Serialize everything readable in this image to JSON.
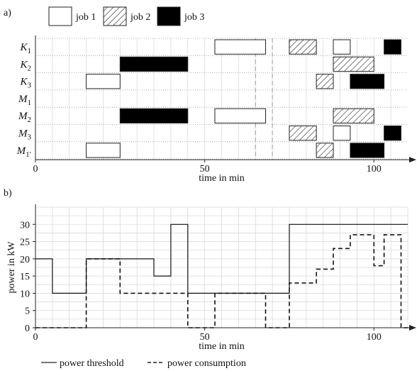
{
  "panel_a": {
    "tag": "a)",
    "legend": [
      "job 1",
      "job 2",
      "job 3"
    ]
  },
  "panel_b": {
    "tag": "b)",
    "legend": [
      "power threshold",
      "power consumption"
    ]
  },
  "chart_data": [
    {
      "type": "gantt",
      "xlabel": "time in min",
      "xlim": [
        0,
        110
      ],
      "xticks": [
        "0",
        "50",
        "100"
      ],
      "xtick_values": [
        0,
        50,
        100
      ],
      "rows": [
        {
          "name": "K",
          "sub": "1",
          "prime": ""
        },
        {
          "name": "K",
          "sub": "2",
          "prime": ""
        },
        {
          "name": "K",
          "sub": "3",
          "prime": ""
        },
        {
          "name": "M",
          "sub": "1",
          "prime": ""
        },
        {
          "name": "M",
          "sub": "2",
          "prime": ""
        },
        {
          "name": "M",
          "sub": "3",
          "prime": ""
        },
        {
          "name": "M",
          "sub": "1",
          "prime": "′"
        }
      ],
      "jobs": [
        "job 1",
        "job 2",
        "job 3"
      ],
      "bars": [
        {
          "row": 0,
          "job": 0,
          "start": 53,
          "end": 68
        },
        {
          "row": 0,
          "job": 1,
          "start": 75,
          "end": 83
        },
        {
          "row": 0,
          "job": 0,
          "start": 88,
          "end": 93
        },
        {
          "row": 0,
          "job": 2,
          "start": 103,
          "end": 108
        },
        {
          "row": 1,
          "job": 2,
          "start": 25,
          "end": 45
        },
        {
          "row": 1,
          "job": 1,
          "start": 88,
          "end": 100
        },
        {
          "row": 2,
          "job": 0,
          "start": 15,
          "end": 25
        },
        {
          "row": 2,
          "job": 1,
          "start": 83,
          "end": 88
        },
        {
          "row": 2,
          "job": 2,
          "start": 93,
          "end": 103
        },
        {
          "row": 4,
          "job": 2,
          "start": 25,
          "end": 45
        },
        {
          "row": 4,
          "job": 0,
          "start": 53,
          "end": 68
        },
        {
          "row": 4,
          "job": 1,
          "start": 88,
          "end": 100
        },
        {
          "row": 5,
          "job": 1,
          "start": 75,
          "end": 83
        },
        {
          "row": 5,
          "job": 0,
          "start": 88,
          "end": 93
        },
        {
          "row": 5,
          "job": 2,
          "start": 103,
          "end": 108
        },
        {
          "row": 6,
          "job": 0,
          "start": 15,
          "end": 25
        },
        {
          "row": 6,
          "job": 1,
          "start": 83,
          "end": 88
        },
        {
          "row": 6,
          "job": 2,
          "start": 93,
          "end": 103
        }
      ],
      "vlines": [
        65,
        70
      ]
    },
    {
      "type": "line",
      "xlabel": "time in min",
      "ylabel": "power in kW",
      "xlim": [
        0,
        110
      ],
      "ylim": [
        0,
        35
      ],
      "xticks": [
        "0",
        "50",
        "100"
      ],
      "xtick_values": [
        0,
        50,
        100
      ],
      "yticks": [
        "0",
        "5",
        "10",
        "15",
        "20",
        "25",
        "30"
      ],
      "ytick_values": [
        0,
        5,
        10,
        15,
        20,
        25,
        30
      ],
      "grid": true,
      "series": [
        {
          "name": "power threshold",
          "style": "solid",
          "x": [
            0,
            5,
            5,
            15,
            15,
            35,
            35,
            40,
            40,
            45,
            45,
            75,
            75,
            110
          ],
          "y": [
            20,
            20,
            10,
            10,
            20,
            20,
            15,
            15,
            30,
            30,
            10,
            10,
            30,
            30
          ]
        },
        {
          "name": "power consumption",
          "style": "dashed",
          "x": [
            0,
            15,
            15,
            25,
            25,
            45,
            45,
            53,
            53,
            68,
            68,
            75,
            75,
            83,
            83,
            88,
            88,
            93,
            93,
            100,
            100,
            103,
            103,
            108,
            108,
            110
          ],
          "y": [
            0,
            0,
            20,
            20,
            10,
            10,
            0,
            0,
            10,
            10,
            0,
            0,
            13,
            13,
            17,
            17,
            23,
            23,
            27,
            27,
            18,
            18,
            27,
            27,
            0,
            0
          ]
        }
      ]
    }
  ]
}
